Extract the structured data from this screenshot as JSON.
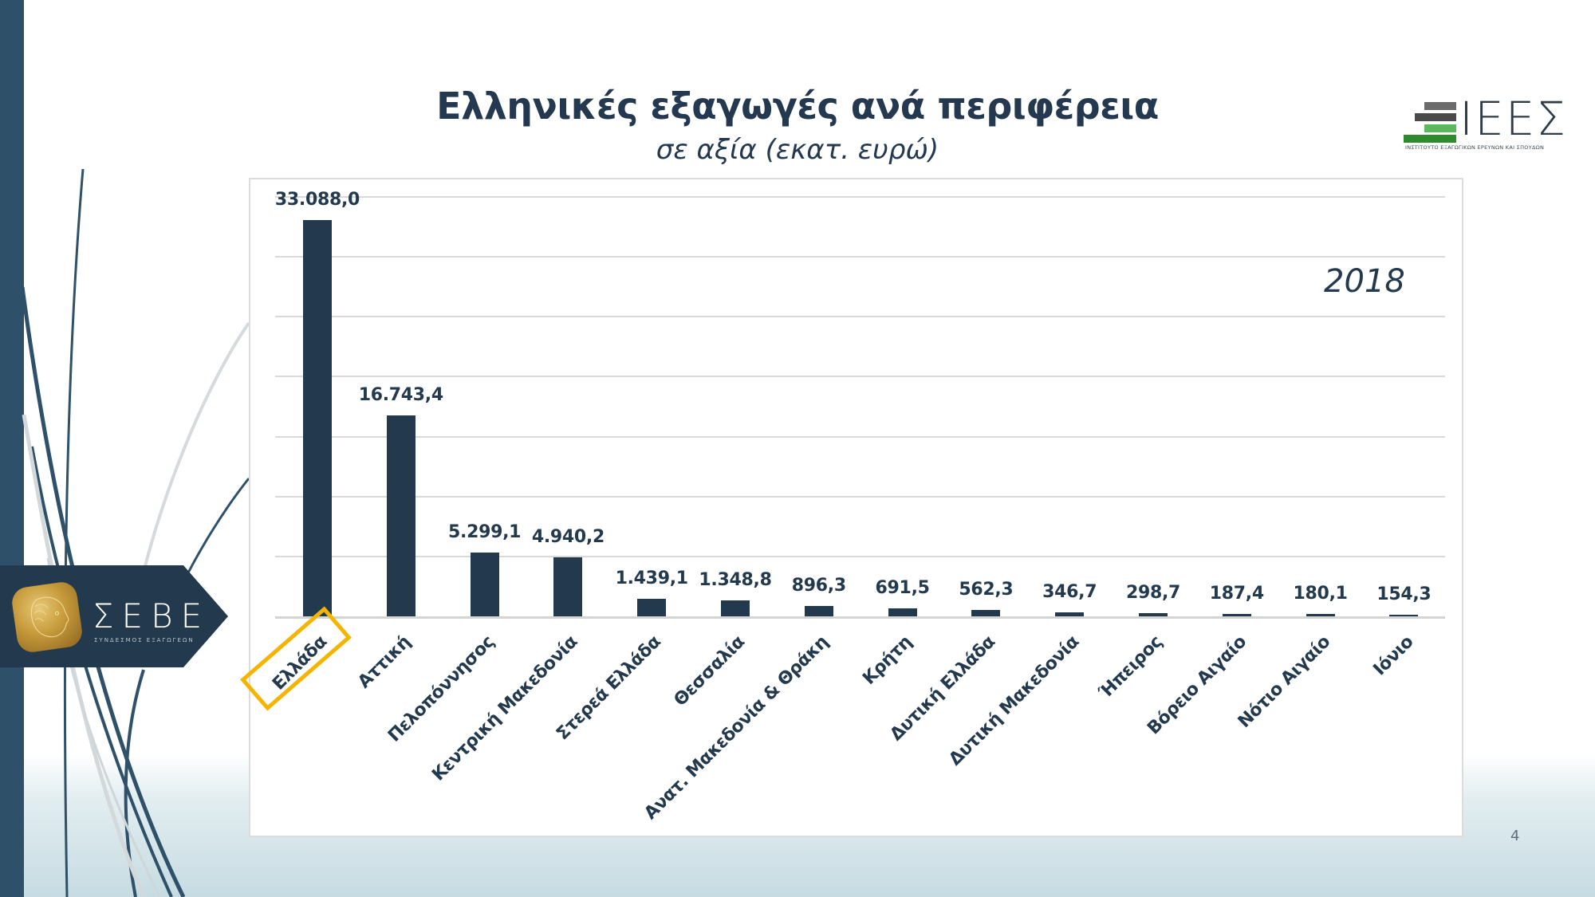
{
  "slide": {
    "title": "Ελληνικές εξαγωγές ανά περιφέρεια",
    "subtitle": "σε αξία (εκατ. ευρώ)",
    "year_label": "2018",
    "page_number": "4"
  },
  "logos": {
    "iees": {
      "letters": "ΙΕΕΣ",
      "caption": "ΙΝΣΤΙΤΟΥΤΟ ΕΞΑΓΩΓΙΚΩΝ ΕΡΕΥΝΩΝ ΚΑΙ ΣΠΟΥΔΩΝ",
      "badge": "ΣΕΒΕ"
    },
    "sebe": {
      "name": "ΣΕΒΕ",
      "subtitle": "ΣΥΝΔΕΣΜΟΣ ΕΞΑΓΩΓΕΩΝ"
    }
  },
  "colors": {
    "bar": "#233a4e",
    "highlight": "#f4b400",
    "sidebar": "#2e5068",
    "gridline": "#d9d9d9"
  },
  "chart_data": {
    "type": "bar",
    "title": "Ελληνικές εξαγωγές ανά περιφέρεια",
    "subtitle": "σε αξία (εκατ. ευρώ)",
    "annotation": "2018",
    "xlabel": "",
    "ylabel": "",
    "ylim": [
      0,
      35000
    ],
    "gridlines": true,
    "grid_step": 5000,
    "y_axis_labels_visible": false,
    "legend": null,
    "highlighted_category": "Ελλάδα",
    "categories": [
      "Ελλάδα",
      "Αττική",
      "Πελοπόννησος",
      "Κεντρική Μακεδονία",
      "Στερεά Ελλάδα",
      "Θεσσαλία",
      "Ανατ. Μακεδονία & Θράκη",
      "Κρήτη",
      "Δυτική Ελλάδα",
      "Δυτική Μακεδονία",
      "Ήπειρος",
      "Βόρειο Αιγαίο",
      "Νότιο Αιγαίο",
      "Ιόνιο"
    ],
    "values": [
      33088.0,
      16743.4,
      5299.1,
      4940.2,
      1439.1,
      1348.8,
      896.3,
      691.5,
      562.3,
      346.7,
      298.7,
      187.4,
      180.1,
      154.3
    ],
    "value_labels": [
      "33.088,0",
      "16.743,4",
      "5.299,1",
      "4.940,2",
      "1.439,1",
      "1.348,8",
      "896,3",
      "691,5",
      "562,3",
      "346,7",
      "298,7",
      "187,4",
      "180,1",
      "154,3"
    ]
  }
}
